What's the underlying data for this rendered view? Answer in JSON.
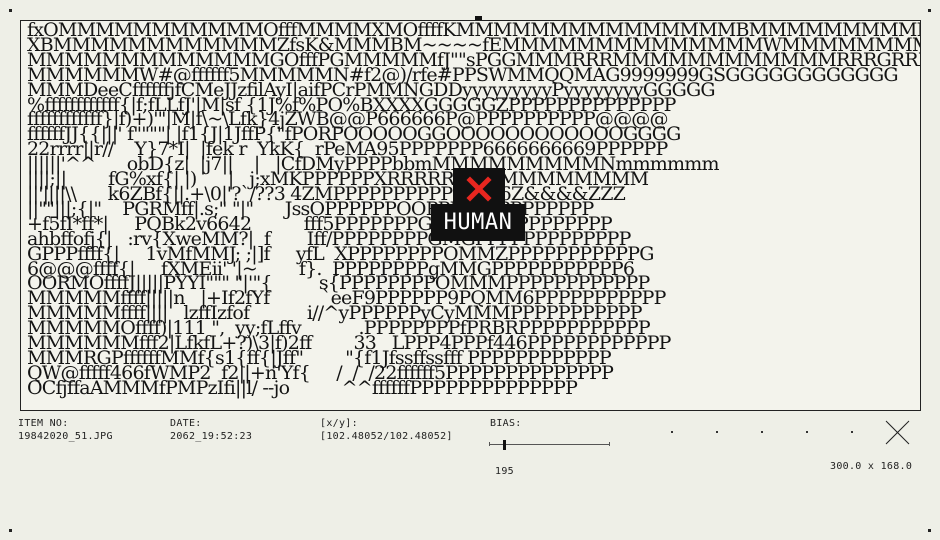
{
  "ascii_art": "fxOMMMMMMMMMMMOfffMMMMXMOffffKMMMMMMMMMMMMMMMBMMMMMMMMMMMMMMMMM\nXBMMMMMMMMMMMMZfsK&MMMBM~~~~fEMMMMMMMMMMMMMMWMMMMMMMMMMMMMMMMM\nMMMMMMMMMMMMMGOfffPGMMMMMfJ\"\"sPGGMMMRRRMMMMMMMMMMMMRRRGRRRGGGGG\nMMMMMMW#@ffffff5MMMMMN#f2@)/rfe#PPSWMMQQMAG9999999GSGGGGGGGGGGGG\nMMMDeeCffffffjfCMeJJzfilAyI|aifPCrPMMNGDDyyyyyyyyyPyyyyyyyyGGGGG\n%ffffffffffff{|f;fLLfJ'|M|sf {1J%f%PO%BXXXXGGGGGZPPPPPPPPPPPPPP\nffffffffffff}|f)+)'\"|M|f\\~\\Lfk}4jZWB@@P666666P@PPPPPPPPPP@@@@\nffffffJJ{{|||' f\"\"\"\"| |f1{J|1JffP{\"fPORPOOOOOGGOOOOOOOOOOOOGGGG\n22rrrr||r//    Y}7*I|  |fek r  YkK{  rPeMA95PPPPPPP6666666669PPPPPP\n||||||'^^      obD{z|  |j7||    |   |CfDMyPPPPbbmMMMMMMMMMNmmmmmm\n||||;||        fG%xf{| |)      |   j;xMKPPPPPPXRRRRRBBMMMMMMMMM\n||'||||\\\\      k6ZBf{||.+\\0|'?`/??3 4ZMPPPPPPPPPPPPP66Z&&&&ZZZ\n||\"\"|||;{|\"    PGRMff|.s;\" \"|\"      JssOPPPPPPOOPPPPPPPPPPPPPP\n+f5fI*ff*|     PQBk2v6642          fff5PPPPPPPGA9PPPPPPPPPPPPP\nahbffofj{|   :rv{XweMM?|  f       Iff/PPPPPPPPGMGPPPPPPPPPPPPP\nGPPPffff{|     1vMfMMJ; ;|]f     yfL  XPPPPPPPPOMMZPPPPPPPPPPPG\n6@@@ffff{|     fXMEii' '|~        f}.  PPPPPPPPgMMGPPPPPPPPPPP6\nOORMOffffJ|||||PYYI\"\"\" \"|'\"{         s{PPPPPPPPOMMMPPPPPPPPPPPP\nMMMMMffff|||||n   |+If2fYf          `eeF9PPPPPP9PQMM6PPPPPPPPPPP\nMMMMMffff||||   lzffIzfof           i//^yPPPPPPyCyMMMPPPPPPPPPPP\nMMMMMOffff)|111 \",  yy;fLffv           .PPPPPPPPfPRBRPPPPPPPPPPP\nMMMMMMfff2|LfkfL+?)\\3|f)2ff        33   LPPP4PPPf446PPPPPPPPPPPP\nMMMRGPffffffMMf{s1{ff{|Jff\"        \"{f1Jfssffssfff PPPPPPPPPPPP\nQW@fffff466fWMP2  f2||+n'Yf{     /  /  /22ffffff5PPPPPPPPPPPPPP\nOCfjffaAMMMfPMPzIfi||l/ --jo          ^^ffffffPPPPPPPPPPPPPP",
  "overlay": {
    "label": "HUMAN",
    "accent": "#e8261f"
  },
  "meta": {
    "item_label": "ITEM NO:",
    "item_value": "19842020_51.JPG",
    "date_label": "DATE:",
    "date_value": "2062_19:52:23",
    "xy_label": "[x/y]:",
    "xy_value": "[102.48052/102.48052]",
    "bias_label": "BIAS:",
    "bias_value": "195",
    "size_value": "300.0 x 168.0"
  },
  "icons": {
    "corner_marks": "corner-dot-icon",
    "close": "close-x-icon",
    "crosshair": "cross-icon"
  }
}
